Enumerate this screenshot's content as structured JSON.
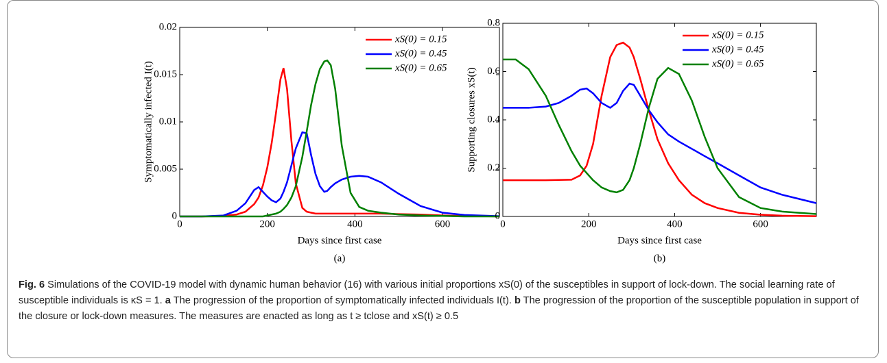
{
  "chart_data": [
    {
      "type": "line",
      "xlabel": "Days since first case",
      "ylabel": "Symptomatically infected I(t)",
      "panel_label": "(a)",
      "x": [
        0,
        50,
        100,
        130,
        150,
        170,
        180,
        190,
        200,
        210,
        220,
        230,
        237,
        245,
        255,
        265,
        280,
        290,
        300,
        310,
        320,
        330,
        337,
        345,
        355,
        370,
        390,
        410,
        430,
        460,
        500,
        550,
        600,
        650,
        730
      ],
      "series": [
        {
          "name": "xS(0) = 0.15",
          "color": "#ff0000",
          "values": [
            0,
            0,
            5e-05,
            0.0002,
            0.0005,
            0.0013,
            0.002,
            0.0033,
            0.0052,
            0.0078,
            0.011,
            0.0145,
            0.0157,
            0.0135,
            0.008,
            0.0035,
            0.0009,
            0.0005,
            0.0004,
            0.0003,
            0.0003,
            0.0003,
            0.0003,
            0.0003,
            0.0003,
            0.0003,
            0.0003,
            0.0003,
            0.0003,
            0.0003,
            0.00025,
            0.0002,
            0.0001,
            5e-05,
            0
          ]
        },
        {
          "name": "xS(0) = 0.45",
          "color": "#0000ff",
          "values": [
            0,
            0,
            0.0001,
            0.0006,
            0.0014,
            0.0028,
            0.0031,
            0.0026,
            0.0021,
            0.0017,
            0.0015,
            0.0019,
            0.0026,
            0.0036,
            0.0054,
            0.0072,
            0.0089,
            0.0088,
            0.0065,
            0.0045,
            0.0032,
            0.0026,
            0.0027,
            0.0031,
            0.0035,
            0.0039,
            0.0042,
            0.0043,
            0.0042,
            0.0036,
            0.0024,
            0.0011,
            0.0004,
            0.00015,
            3e-05
          ]
        },
        {
          "name": "xS(0) = 0.65",
          "color": "#008000",
          "values": [
            0,
            0,
            0,
            0,
            0,
            0,
            0,
            0,
            0.0001,
            0.0002,
            0.0003,
            0.0005,
            0.0008,
            0.0012,
            0.002,
            0.0032,
            0.0063,
            0.009,
            0.0118,
            0.014,
            0.0156,
            0.0164,
            0.0165,
            0.016,
            0.0135,
            0.0075,
            0.0025,
            0.001,
            0.0006,
            0.0004,
            0.0002,
            0.0001,
            5e-05,
            0,
            0
          ]
        }
      ],
      "xlim": [
        0,
        730
      ],
      "xticks": [
        0,
        200,
        400,
        600
      ],
      "ylim": [
        0,
        0.02
      ],
      "yticks": [
        0,
        0.005,
        0.01,
        0.015,
        0.02
      ],
      "grid": false,
      "legend": "upper right"
    },
    {
      "type": "line",
      "xlabel": "Days since first case",
      "ylabel": "Supporting closures xS(t)",
      "panel_label": "(b)",
      "x": [
        0,
        30,
        60,
        100,
        130,
        160,
        180,
        195,
        210,
        230,
        250,
        265,
        280,
        295,
        305,
        320,
        340,
        360,
        385,
        410,
        440,
        470,
        500,
        550,
        600,
        650,
        730
      ],
      "series": [
        {
          "name": "xS(0) = 0.15",
          "color": "#ff0000",
          "values": [
            0.15,
            0.15,
            0.15,
            0.15,
            0.151,
            0.152,
            0.17,
            0.21,
            0.3,
            0.5,
            0.66,
            0.71,
            0.72,
            0.7,
            0.66,
            0.57,
            0.44,
            0.32,
            0.22,
            0.15,
            0.09,
            0.055,
            0.035,
            0.015,
            0.007,
            0.003,
            0.001
          ]
        },
        {
          "name": "xS(0) = 0.45",
          "color": "#0000ff",
          "values": [
            0.45,
            0.45,
            0.45,
            0.455,
            0.47,
            0.5,
            0.525,
            0.53,
            0.51,
            0.47,
            0.45,
            0.47,
            0.52,
            0.55,
            0.545,
            0.5,
            0.44,
            0.39,
            0.34,
            0.31,
            0.28,
            0.25,
            0.22,
            0.17,
            0.12,
            0.09,
            0.055
          ]
        },
        {
          "name": "xS(0) = 0.65",
          "color": "#008000",
          "values": [
            0.65,
            0.65,
            0.61,
            0.5,
            0.38,
            0.27,
            0.21,
            0.18,
            0.15,
            0.12,
            0.105,
            0.1,
            0.11,
            0.15,
            0.2,
            0.3,
            0.45,
            0.57,
            0.615,
            0.59,
            0.48,
            0.33,
            0.2,
            0.08,
            0.035,
            0.02,
            0.01
          ]
        }
      ],
      "xlim": [
        0,
        730
      ],
      "xticks": [
        0,
        200,
        400,
        600
      ],
      "ylim": [
        0,
        0.8
      ],
      "yticks": [
        0,
        0.2,
        0.4,
        0.6,
        0.8
      ],
      "grid": false,
      "legend": "upper right"
    }
  ],
  "caption": {
    "label": "Fig. 6",
    "text": "Simulations of the COVID-19 model with dynamic human behavior (16) with various initial proportions xS(0) of the susceptibles in support of lock-down. The social learning rate of susceptible individuals is κS = 1.",
    "items": [
      {
        "label": "a",
        "text": "The progression of the proportion of symptomatically infected individuals I(t)."
      },
      {
        "label": "b",
        "text": "The progression of the proportion of the susceptible population in support of the closure or lock-down measures. The measures are enacted as long as t ≥ tclose and xS(t) ≥ 0.5"
      }
    ]
  }
}
